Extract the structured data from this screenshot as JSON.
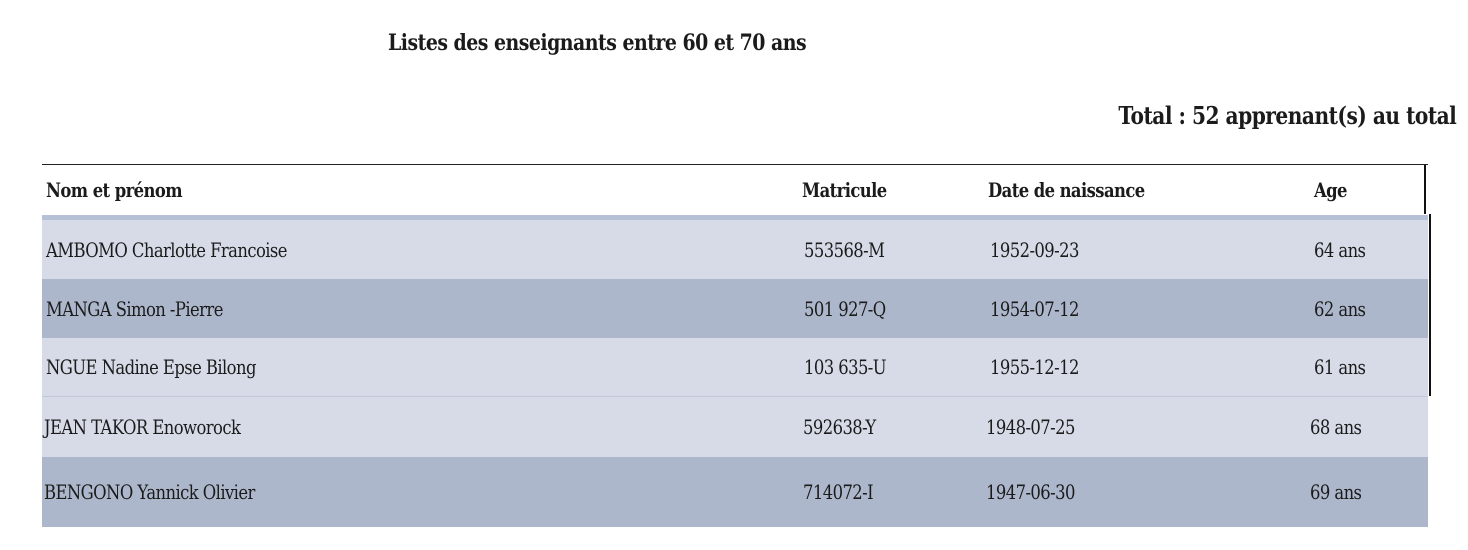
{
  "page": {
    "title": "Listes des enseignants entre 60 et 70 ans",
    "total": "Total : 52 apprenant(s) au total"
  },
  "table": {
    "headers": {
      "name": "Nom et prénom",
      "matricule": "Matricule",
      "birthdate": "Date de naissance",
      "age": "Age"
    },
    "rows": [
      {
        "name": "AMBOMO Charlotte Francoise",
        "matricule": "553568-M",
        "birthdate": "1952-09-23",
        "age": "64 ans"
      },
      {
        "name": "MANGA Simon -Pierre",
        "matricule": "501 927-Q",
        "birthdate": "1954-07-12",
        "age": "62 ans"
      },
      {
        "name": "NGUE Nadine Epse Bilong",
        "matricule": "103 635-U",
        "birthdate": "1955-12-12",
        "age": "61 ans"
      },
      {
        "name": "JEAN TAKOR Enoworock",
        "matricule": "592638-Y",
        "birthdate": "1948-07-25",
        "age": "68 ans"
      },
      {
        "name": "BENGONO Yannick Olivier",
        "matricule": "714072-I",
        "birthdate": "1947-06-30",
        "age": "69 ans"
      }
    ]
  },
  "colors": {
    "row_light": "#d6dbe7",
    "row_dark": "#adb7cc",
    "header_rule": "#b6c1d8"
  }
}
